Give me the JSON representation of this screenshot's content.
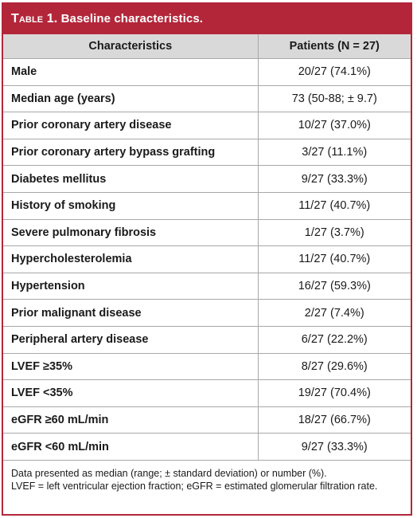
{
  "title": {
    "label": "Table 1.",
    "text": "Baseline characteristics."
  },
  "header": {
    "col1": "Characteristics",
    "col2": "Patients (N = 27)"
  },
  "rows": [
    {
      "characteristic": "Male",
      "value": "20/27 (74.1%)"
    },
    {
      "characteristic": "Median age (years)",
      "value": "73 (50-88; ± 9.7)"
    },
    {
      "characteristic": "Prior coronary artery disease",
      "value": "10/27 (37.0%)"
    },
    {
      "characteristic": "Prior coronary artery bypass grafting",
      "value": "3/27 (11.1%)"
    },
    {
      "characteristic": "Diabetes mellitus",
      "value": "9/27 (33.3%)"
    },
    {
      "characteristic": "History of smoking",
      "value": "11/27 (40.7%)"
    },
    {
      "characteristic": "Severe pulmonary fibrosis",
      "value": "1/27 (3.7%)"
    },
    {
      "characteristic": "Hypercholesterolemia",
      "value": "11/27 (40.7%)"
    },
    {
      "characteristic": "Hypertension",
      "value": "16/27 (59.3%)"
    },
    {
      "characteristic": "Prior malignant disease",
      "value": "2/27 (7.4%)"
    },
    {
      "characteristic": "Peripheral artery disease",
      "value": "6/27 (22.2%)"
    },
    {
      "characteristic": "LVEF ≥35%",
      "value": "8/27 (29.6%)"
    },
    {
      "characteristic": "LVEF <35%",
      "value": "19/27 (70.4%)"
    },
    {
      "characteristic": "eGFR ≥60 mL/min",
      "value": "18/27 (66.7%)"
    },
    {
      "characteristic": "eGFR <60 mL/min",
      "value": "9/27 (33.3%)"
    }
  ],
  "footnote": {
    "line1": "Data presented as median (range; ± standard deviation) or number (%).",
    "line2": "LVEF = left ventricular ejection fraction; eGFR = estimated glomerular filtration rate."
  },
  "colors": {
    "accent": "#b3263a",
    "header_bg": "#d9d9d9",
    "rule": "#a8a8a8"
  }
}
